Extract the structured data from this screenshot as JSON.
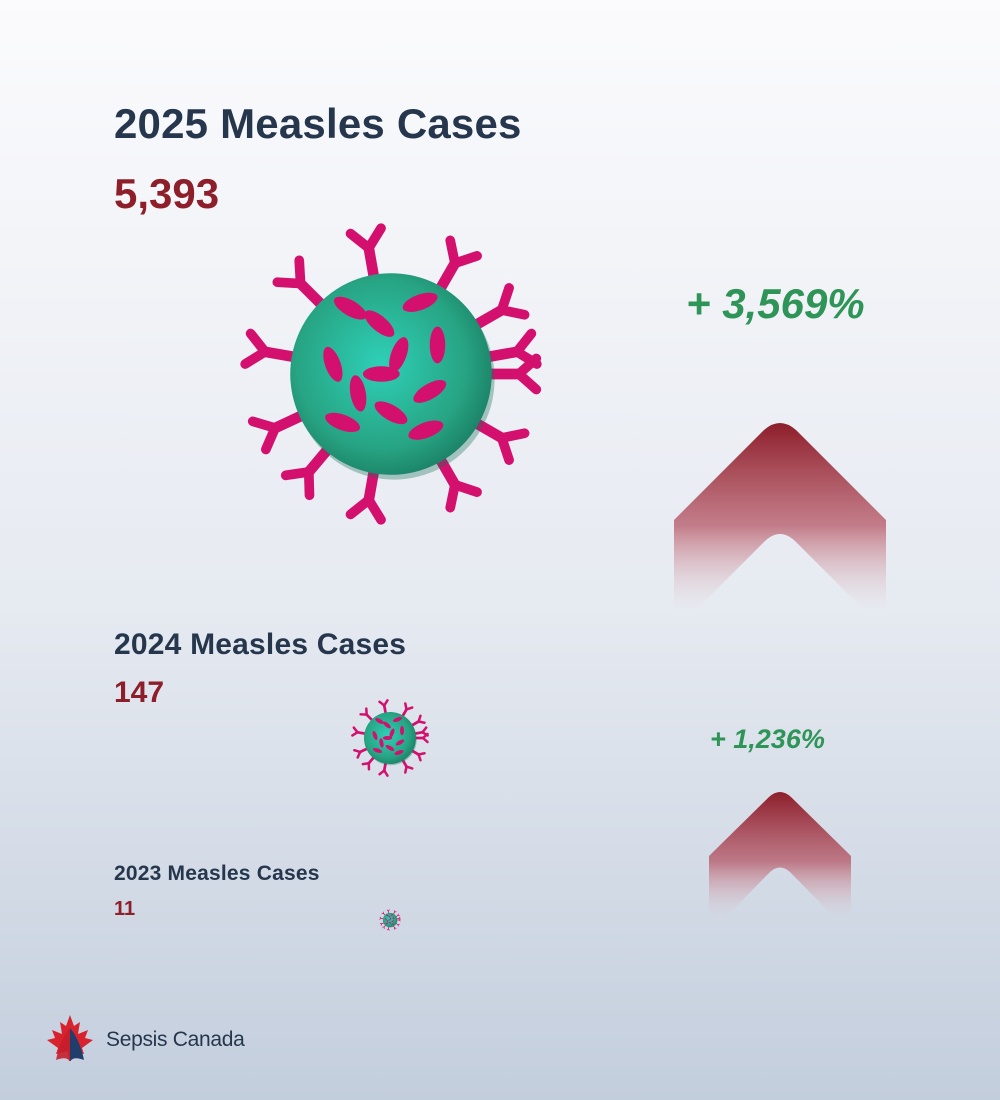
{
  "sections": [
    {
      "title": "2025 Measles Cases",
      "count": "5,393"
    },
    {
      "title": "2024 Measles Cases",
      "count": "147"
    },
    {
      "title": "2023 Measles Cases",
      "count": "11"
    }
  ],
  "increases": [
    {
      "text": "+ 3,569%"
    },
    {
      "text": "+ 1,236%"
    }
  ],
  "logo": {
    "name": "Sepsis Canada"
  },
  "colors": {
    "title": "#26374d",
    "count": "#8d1e2a",
    "increase": "#2f9457",
    "virus_body": "#27a483",
    "virus_spike": "#d4106f",
    "arrow": "#9a2232"
  },
  "icons": [
    "measles-virus-icon",
    "up-arrow-icon",
    "maple-leaf-icon"
  ]
}
